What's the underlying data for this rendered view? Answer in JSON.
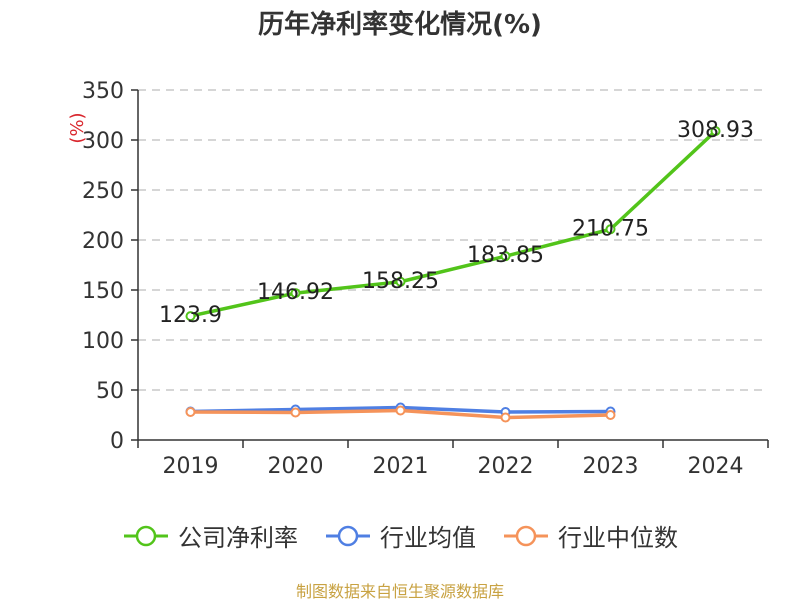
{
  "chart_data": {
    "type": "line",
    "title": "历年净利率变化情况(%)",
    "ylabel": "(%)",
    "xlabel": "",
    "ylim": [
      0,
      350
    ],
    "yticks": [
      0,
      50,
      100,
      150,
      200,
      250,
      300,
      350
    ],
    "grid": true,
    "categories": [
      "2019",
      "2020",
      "2021",
      "2022",
      "2023",
      "2024"
    ],
    "series": [
      {
        "name": "公司净利率",
        "color": "#52c41a",
        "values": [
          123.9,
          146.92,
          158.25,
          183.85,
          210.75,
          308.93
        ],
        "labels": [
          "123.9",
          "146.92",
          "158.25",
          "183.85",
          "210.75",
          "308.93"
        ],
        "show_labels": true
      },
      {
        "name": "行业均值",
        "color": "#4f7fe3",
        "values": [
          28.5,
          30.5,
          32.5,
          28.0,
          28.5,
          null
        ],
        "show_labels": false
      },
      {
        "name": "行业中位数",
        "color": "#f5935a",
        "values": [
          28.0,
          27.5,
          29.5,
          22.5,
          25.0,
          null
        ],
        "show_labels": false
      }
    ],
    "legend_position": "bottom",
    "source": "制图数据来自恒生聚源数据库"
  }
}
